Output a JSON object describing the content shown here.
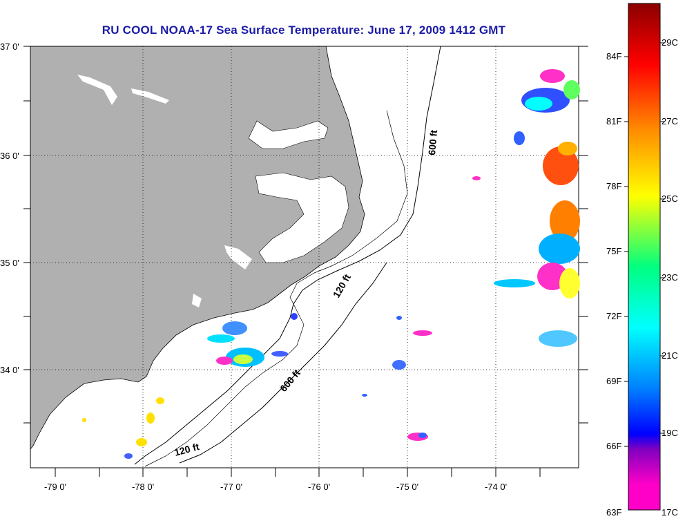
{
  "title": "RU COOL  NOAA-17  Sea Surface Temperature:  June 17, 2009 1412 GMT",
  "lat_labels": [
    "37 0'",
    "36 0'",
    "35 0'",
    "34 0'"
  ],
  "lon_labels": [
    "-79 0'",
    "-78 0'",
    "-77 0'",
    "-76 0'",
    "-75 0'",
    "-74 0'"
  ],
  "contour_labels": [
    "600 ft",
    "120 ft",
    "600 ft",
    "120 ft"
  ],
  "colorbar": {
    "fahrenheit_labels": [
      "84F",
      "81F",
      "78F",
      "75F",
      "72F",
      "69F",
      "66F",
      "63F"
    ],
    "celsius_labels": [
      "29C",
      "27C",
      "25C",
      "23C",
      "21C",
      "19C",
      "17C"
    ],
    "colors": [
      "#8b0000",
      "#ff0000",
      "#ff8c00",
      "#ffff00",
      "#00ff80",
      "#00ffff",
      "#0080ff",
      "#0000ff",
      "#8000c0",
      "#ff00c8"
    ]
  },
  "colors": {
    "land": "#b0b0b0",
    "title": "#1a1aa8",
    "grid": "#000000"
  }
}
